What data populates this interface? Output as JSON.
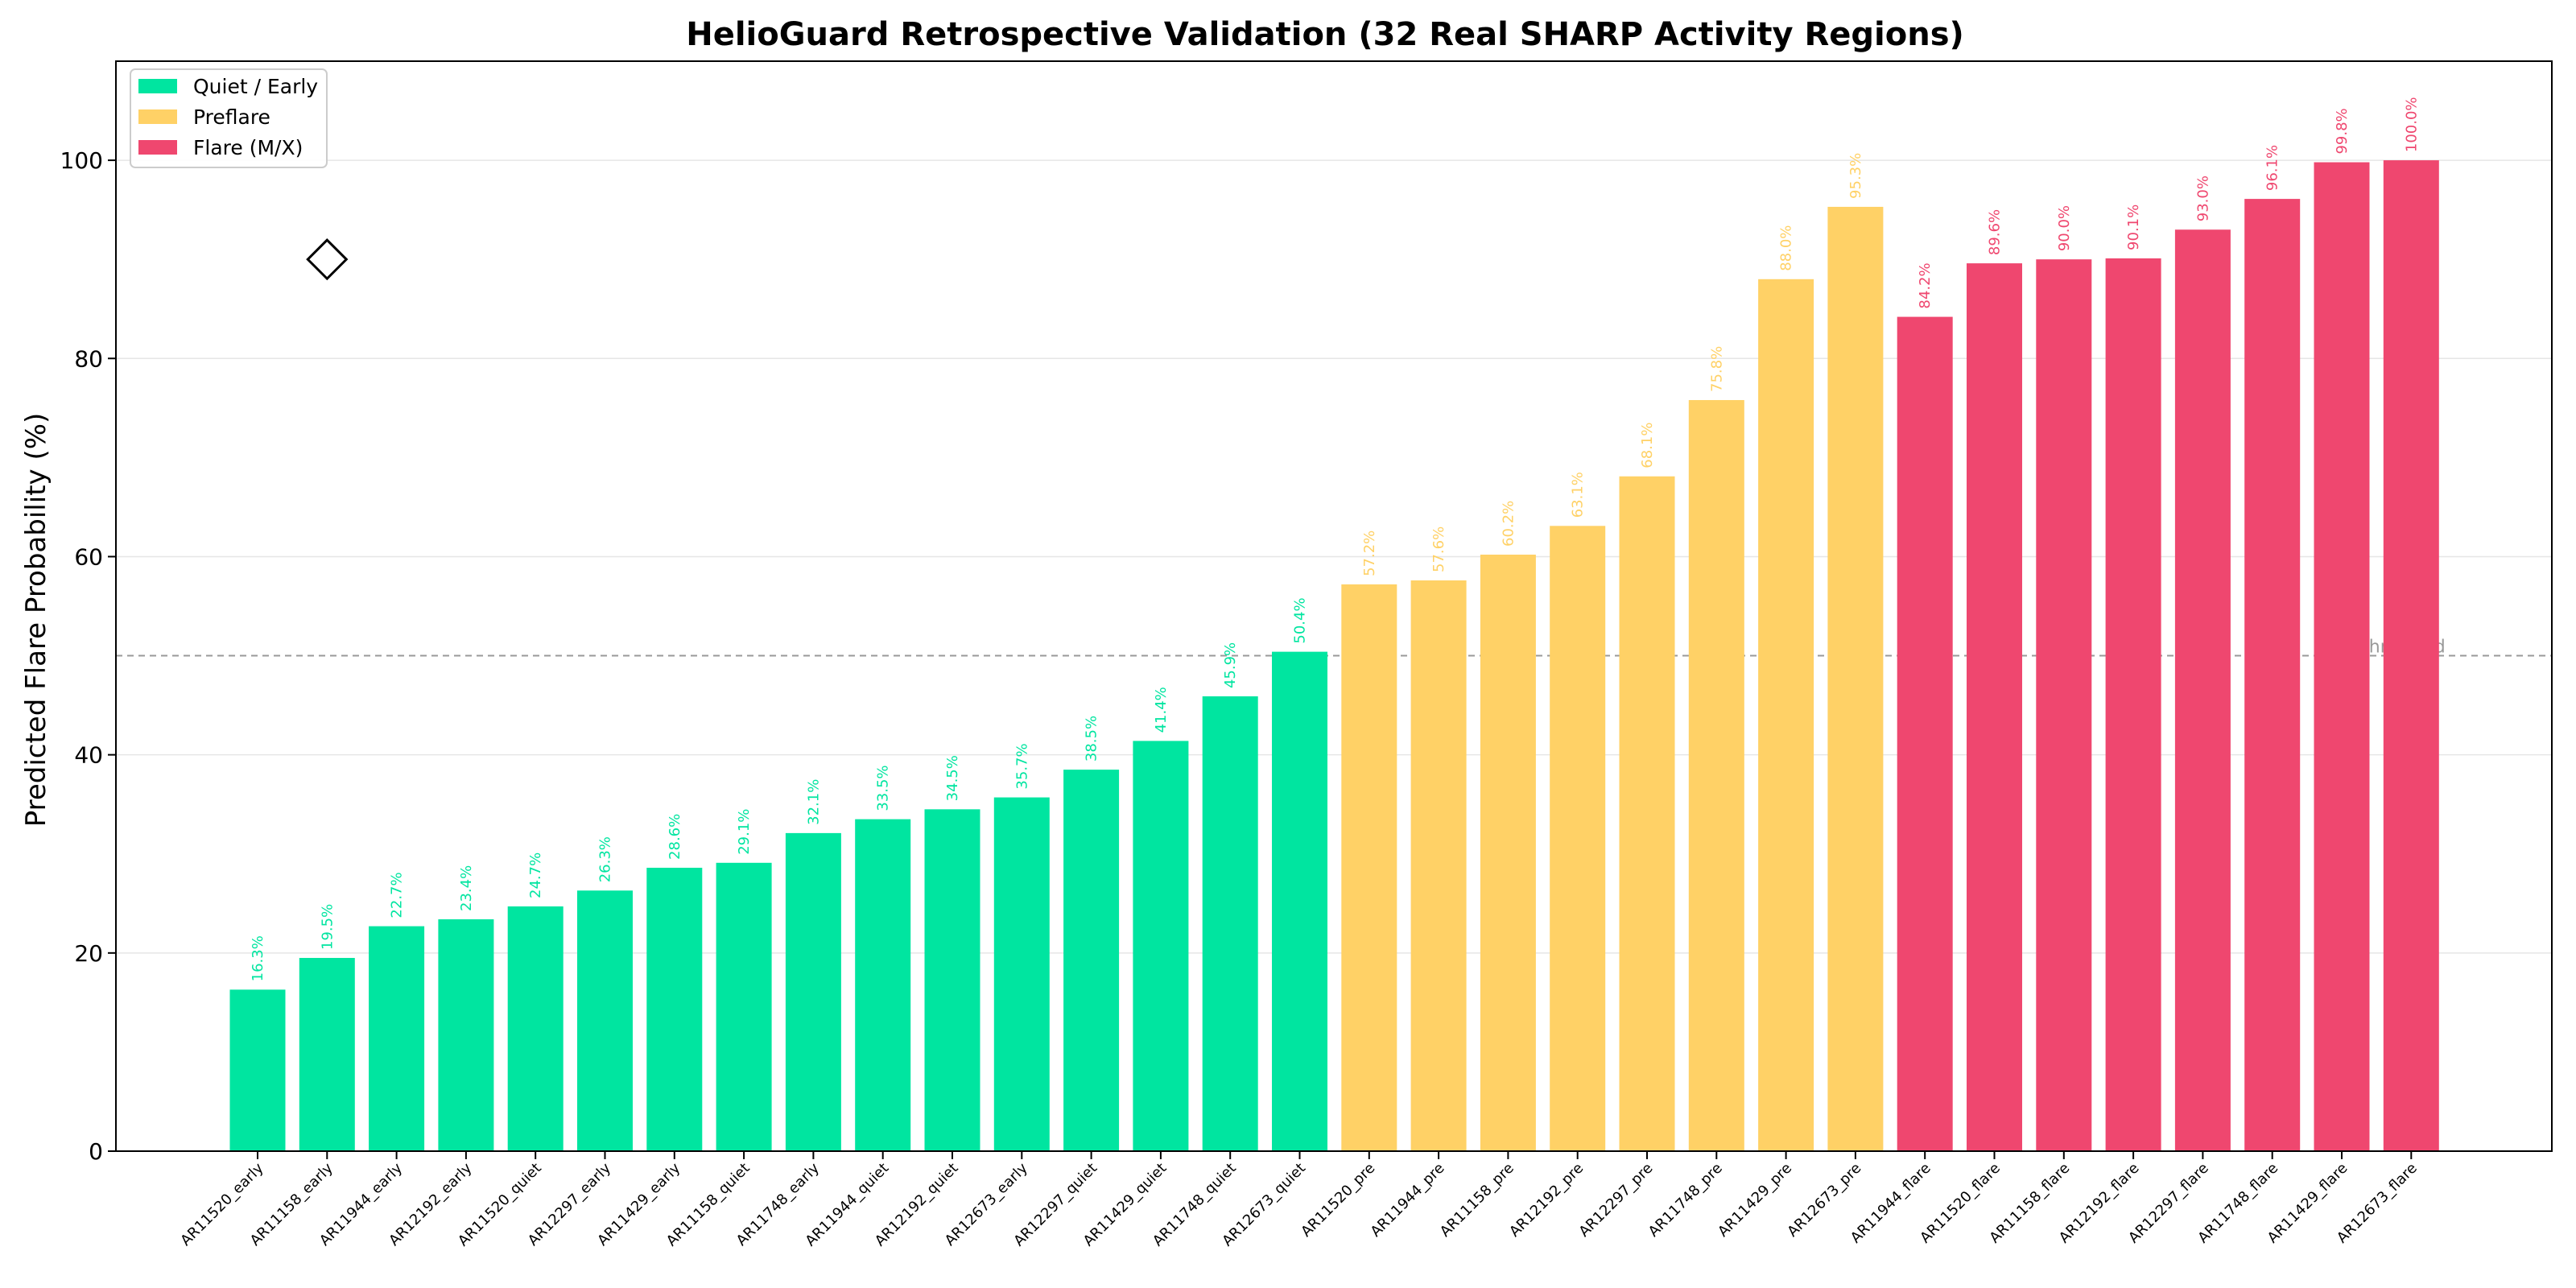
{
  "chart_data": {
    "type": "bar",
    "title": "HelioGuard Retrospective Validation (32 Real SHARP Activity Regions)",
    "xlabel": "",
    "ylabel": "Predicted Flare Probability (%)",
    "ylim": [
      0,
      110
    ],
    "yticks": [
      0,
      20,
      40,
      60,
      80,
      100
    ],
    "grid": "horizontal",
    "legend_position": "top-left",
    "threshold": {
      "value": 50,
      "label": "50% threshold"
    },
    "colors": {
      "quiet": "#00e5a0",
      "preflare": "#ffd166",
      "flare": "#ef476f"
    },
    "legend": [
      {
        "key": "quiet",
        "label": "Quiet / Early"
      },
      {
        "key": "preflare",
        "label": "Preflare"
      },
      {
        "key": "flare",
        "label": "Flare (M/X)"
      }
    ],
    "categories": [
      "AR11520_early",
      "AR11158_early",
      "AR11944_early",
      "AR12192_early",
      "AR11520_quiet",
      "AR12297_early",
      "AR11429_early",
      "AR11158_quiet",
      "AR11748_early",
      "AR11944_quiet",
      "AR12192_quiet",
      "AR12673_early",
      "AR12297_quiet",
      "AR11429_quiet",
      "AR11748_quiet",
      "AR12673_quiet",
      "AR11520_pre",
      "AR11944_pre",
      "AR11158_pre",
      "AR12192_pre",
      "AR12297_pre",
      "AR11748_pre",
      "AR11429_pre",
      "AR12673_pre",
      "AR11944_flare",
      "AR11520_flare",
      "AR11158_flare",
      "AR12192_flare",
      "AR12297_flare",
      "AR11748_flare",
      "AR11429_flare",
      "AR12673_flare"
    ],
    "values": [
      16.3,
      19.5,
      22.7,
      23.4,
      24.7,
      26.3,
      28.6,
      29.1,
      32.1,
      33.5,
      34.5,
      35.7,
      38.5,
      41.4,
      45.9,
      50.4,
      57.2,
      57.6,
      60.2,
      63.1,
      68.1,
      75.8,
      88.0,
      95.3,
      84.2,
      89.6,
      90.0,
      90.1,
      93.0,
      96.1,
      99.8,
      100.0
    ],
    "value_labels": [
      "16.3%",
      "19.5%",
      "22.7%",
      "23.4%",
      "24.7%",
      "26.3%",
      "28.6%",
      "29.1%",
      "32.1%",
      "33.5%",
      "34.5%",
      "35.7%",
      "38.5%",
      "41.4%",
      "45.9%",
      "50.4%",
      "57.2%",
      "57.6%",
      "60.2%",
      "63.1%",
      "68.1%",
      "75.8%",
      "88.0%",
      "95.3%",
      "84.2%",
      "89.6%",
      "90.0%",
      "90.1%",
      "93.0%",
      "96.1%",
      "99.8%",
      "100.0%"
    ],
    "classes": [
      "quiet",
      "quiet",
      "quiet",
      "quiet",
      "quiet",
      "quiet",
      "quiet",
      "quiet",
      "quiet",
      "quiet",
      "quiet",
      "quiet",
      "quiet",
      "quiet",
      "quiet",
      "quiet",
      "preflare",
      "preflare",
      "preflare",
      "preflare",
      "preflare",
      "preflare",
      "preflare",
      "preflare",
      "flare",
      "flare",
      "flare",
      "flare",
      "flare",
      "flare",
      "flare",
      "flare"
    ],
    "marker": {
      "shape": "diamond",
      "x_category": "AR11158_early",
      "y": 90
    }
  }
}
